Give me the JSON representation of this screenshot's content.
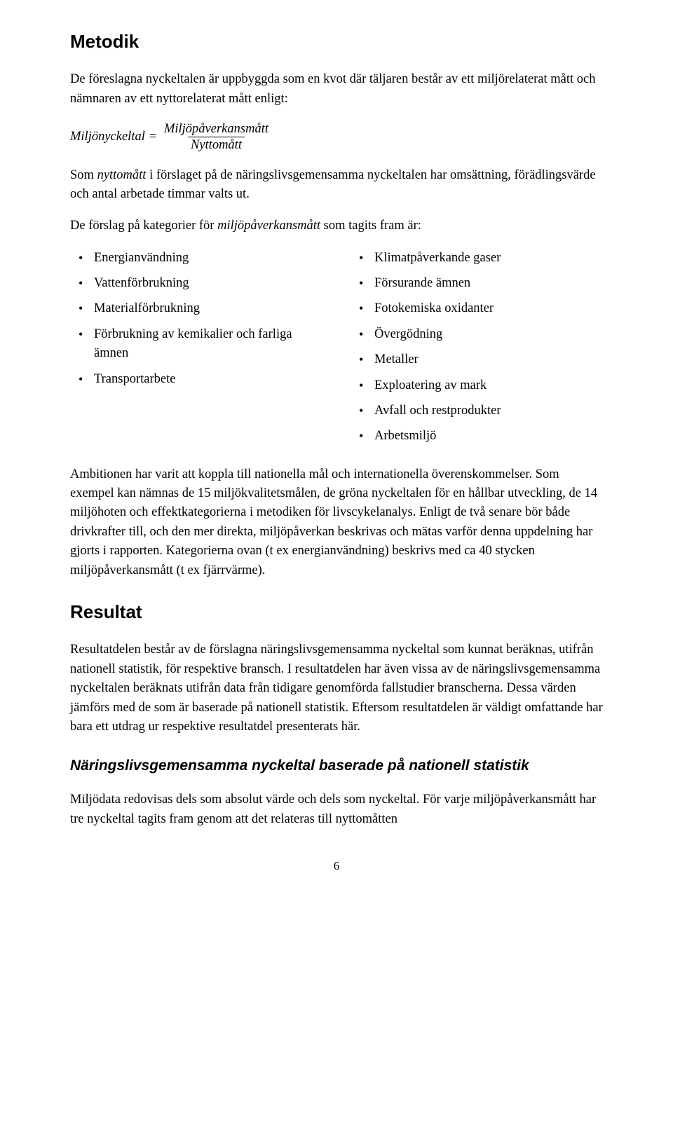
{
  "heading_main": "Metodik",
  "para_intro": "De föreslagna nyckeltalen är uppbyggda som en kvot där täljaren består av ett miljörelaterat mått och nämnaren av ett nyttorelaterat mått enligt:",
  "formula": {
    "lhs": "Miljönyckeltal =",
    "numerator": "Miljöpåverkansmått",
    "denominator": "Nyttomått"
  },
  "para_som_start": "Som ",
  "para_som_ital": "nyttomått",
  "para_som_end": " i förslaget på de näringslivsgemensamma nyckeltalen har omsättning, förädlingsvärde och antal arbetade timmar valts ut.",
  "para_forslag_start": "De förslag på kategorier för ",
  "para_forslag_ital": "miljöpåverkansmått",
  "para_forslag_end": " som tagits fram är:",
  "left_list": [
    "Energianvändning",
    "Vattenförbrukning",
    "Materialförbrukning",
    "Förbrukning av kemikalier och farliga ämnen",
    "Transportarbete"
  ],
  "right_list": [
    "Klimatpåverkande gaser",
    "Försurande ämnen",
    "Fotokemiska oxidanter",
    "Övergödning",
    "Metaller",
    "Exploatering av mark",
    "Avfall och restprodukter",
    "Arbetsmiljö"
  ],
  "para_ambition": "Ambitionen har varit att koppla till nationella mål och internationella överenskommelser. Som exempel kan nämnas de 15 miljökvalitetsmålen, de gröna nyckeltalen för en hållbar utveckling, de 14 miljöhoten och effektkategorierna i metodiken för livscykelanalys. Enligt de två senare bör både drivkrafter till, och den mer direkta, miljöpåverkan beskrivas och mätas varför denna uppdelning har gjorts i rapporten. Kategorierna ovan (t ex energianvändning) beskrivs med ca 40 stycken miljöpåverkansmått (t ex fjärrvärme).",
  "heading_result": "Resultat",
  "para_result": "Resultatdelen består av de förslagna näringslivsgemensamma nyckeltal som kunnat beräknas, utifrån nationell statistik, för respektive bransch. I resultatdelen har även vissa av de näringslivsgemensamma nyckeltalen beräknats utifrån data från tidigare genomförda fallstudier branscherna. Dessa värden jämförs med de som är baserade på nationell statistik. Eftersom resultatdelen är väldigt omfattande har bara ett utdrag ur respektive resultatdel presenterats här.",
  "heading_sub": "Näringslivsgemensamma nyckeltal baserade på nationell statistik",
  "para_miljodata": "Miljödata redovisas dels som absolut värde och dels som nyckeltal. För varje miljöpåverkansmått har tre nyckeltal tagits fram genom att det relateras till nyttomåtten",
  "page_number": "6"
}
